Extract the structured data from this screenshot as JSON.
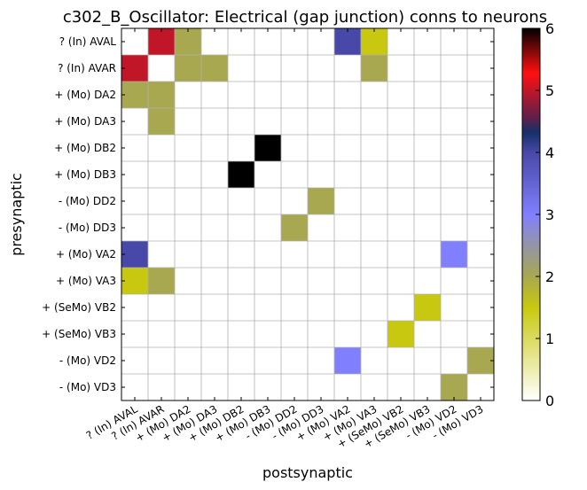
{
  "chart_data": {
    "type": "heatmap",
    "title": "c302_B_Oscillator: Electrical (gap junction) conns to neurons",
    "xlabel": "postsynaptic",
    "ylabel": "presynaptic",
    "rows": [
      "? (In) AVAL",
      "? (In) AVAR",
      "+ (Mo) DA2",
      "+ (Mo) DA3",
      "+ (Mo) DB2",
      "+ (Mo) DB3",
      "- (Mo) DD2",
      "- (Mo) DD3",
      "+ (Mo) VA2",
      "+ (Mo) VA3",
      "+ (SeMo) VB2",
      "+ (SeMo) VB3",
      "- (Mo) VD2",
      "- (Mo) VD3"
    ],
    "columns": [
      "? (In) AVAL",
      "? (In) AVAR",
      "+ (Mo) DA2",
      "+ (Mo) DA3",
      "+ (Mo) DB2",
      "+ (Mo) DB3",
      "- (Mo) DD2",
      "- (Mo) DD3",
      "+ (Mo) VA2",
      "+ (Mo) VA3",
      "+ (SeMo) VB2",
      "+ (SeMo) VB3",
      "- (Mo) VD2",
      "- (Mo) VD3"
    ],
    "values": [
      [
        0,
        5,
        2,
        0,
        0,
        0,
        0,
        0,
        4,
        1.5,
        0,
        0,
        0,
        0
      ],
      [
        5,
        0,
        2,
        2,
        0,
        0,
        0,
        0,
        0,
        2,
        0,
        0,
        0,
        0
      ],
      [
        2,
        2,
        0,
        0,
        0,
        0,
        0,
        0,
        0,
        0,
        0,
        0,
        0,
        0
      ],
      [
        0,
        2,
        0,
        0,
        0,
        0,
        0,
        0,
        0,
        0,
        0,
        0,
        0,
        0
      ],
      [
        0,
        0,
        0,
        0,
        0,
        6,
        0,
        0,
        0,
        0,
        0,
        0,
        0,
        0
      ],
      [
        0,
        0,
        0,
        0,
        6,
        0,
        0,
        0,
        0,
        0,
        0,
        0,
        0,
        0
      ],
      [
        0,
        0,
        0,
        0,
        0,
        0,
        0,
        2,
        0,
        0,
        0,
        0,
        0,
        0
      ],
      [
        0,
        0,
        0,
        0,
        0,
        0,
        2,
        0,
        0,
        0,
        0,
        0,
        0,
        0
      ],
      [
        4,
        0,
        0,
        0,
        0,
        0,
        0,
        0,
        0,
        0,
        0,
        0,
        3,
        0
      ],
      [
        1.5,
        2,
        0,
        0,
        0,
        0,
        0,
        0,
        0,
        0,
        0,
        0,
        0,
        0
      ],
      [
        0,
        0,
        0,
        0,
        0,
        0,
        0,
        0,
        0,
        0,
        0,
        1.5,
        0,
        0
      ],
      [
        0,
        0,
        0,
        0,
        0,
        0,
        0,
        0,
        0,
        0,
        1.5,
        0,
        0,
        0
      ],
      [
        0,
        0,
        0,
        0,
        0,
        0,
        0,
        0,
        3,
        0,
        0,
        0,
        0,
        2
      ],
      [
        0,
        0,
        0,
        0,
        0,
        0,
        0,
        0,
        0,
        0,
        0,
        0,
        2,
        0
      ]
    ],
    "colorbar": {
      "colormap": "gist_stern_r-like",
      "range": [
        0,
        6
      ],
      "ticks": [
        "0",
        "1",
        "2",
        "3",
        "4",
        "5",
        "6"
      ]
    },
    "grid": true
  }
}
